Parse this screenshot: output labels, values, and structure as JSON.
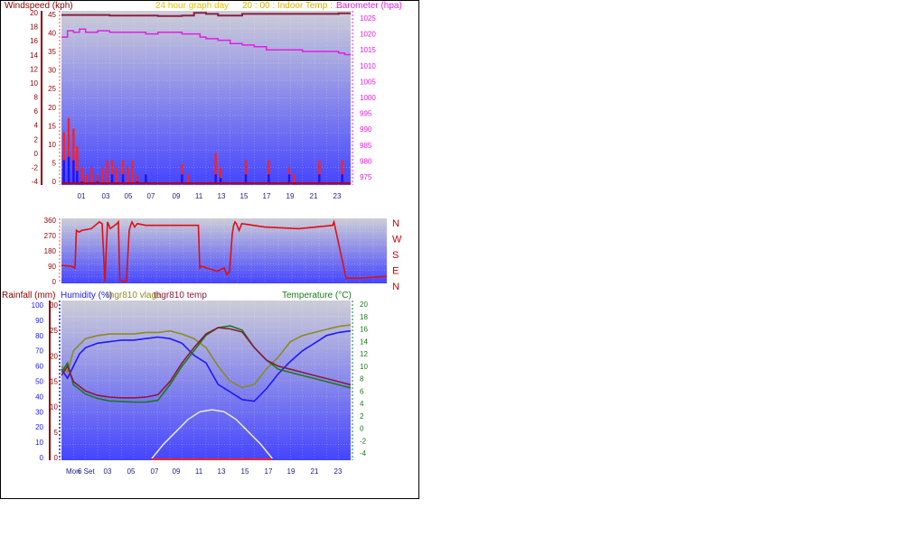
{
  "page": {
    "title": "24 hour graph day",
    "overlay_text": "20 : 00 : Indoor Temp : ..."
  },
  "colors": {
    "wind_axis": "#8b0000",
    "baro": "#e020e0",
    "wind_gust": "#ff2020",
    "wind_avg": "#1515ff",
    "direction": "#e01010",
    "indoor_temp": "#8b2040",
    "rainfall": "#8b0000",
    "humidity": "#1a1aff",
    "vlaga": "#8b8b20",
    "thgr_temp": "#8b1a3a",
    "temperature": "#1a7a1a",
    "solar": "#e8e8e8",
    "bg_top": "#c8c8d4",
    "bg_bottom": "#4a4aff",
    "day_label": "#1a1a8b"
  },
  "chart_data": [
    {
      "type": "line",
      "title": "24 hour graph day",
      "left_axis_label": "Windspeed (kph)",
      "right_axis_label": "Barometer (hpa)",
      "hour_labels": [
        "01",
        "03",
        "05",
        "07",
        "09",
        "11",
        "13",
        "15",
        "17",
        "19",
        "21",
        "23"
      ],
      "wind_ticks_outer": [
        20,
        18,
        16,
        14,
        12,
        10,
        8,
        6,
        4,
        2,
        0,
        -2,
        -4
      ],
      "wind_ticks_inner": [
        45,
        40,
        35,
        30,
        25,
        20,
        15,
        10,
        5,
        0
      ],
      "baro_ticks": [
        1025,
        1020,
        1015,
        1010,
        1005,
        1000,
        995,
        990,
        985,
        980,
        975
      ],
      "ylim_baro": [
        975,
        1028
      ],
      "series": [
        {
          "name": "Barometer (hpa)",
          "x": [
            0,
            0.5,
            1,
            1.5,
            2,
            3,
            4,
            5,
            6,
            7,
            8,
            9,
            10,
            11,
            11.5,
            12,
            13,
            14,
            15,
            16,
            17,
            18,
            19,
            20,
            21,
            22,
            23,
            23.5,
            24
          ],
          "values": [
            1019,
            1021,
            1020.5,
            1021.5,
            1020.5,
            1021,
            1020.5,
            1020.5,
            1020.5,
            1020,
            1020.5,
            1020.5,
            1020,
            1020,
            1019,
            1018.5,
            1018,
            1017,
            1016.5,
            1016,
            1015,
            1015,
            1015,
            1014.5,
            1014.5,
            1014.5,
            1014,
            1013.5,
            1013.5
          ]
        },
        {
          "name": "Indoor Temp",
          "x": [
            0,
            1,
            2,
            3,
            4,
            5,
            6,
            7,
            8,
            9,
            10,
            11,
            12,
            13,
            14,
            15,
            16,
            17,
            18,
            19,
            20,
            21,
            22,
            23,
            24
          ],
          "values": [
            20,
            20,
            20,
            20,
            19.9,
            19.9,
            19.9,
            19.9,
            19.8,
            19.8,
            19.9,
            20.4,
            20.2,
            19.9,
            19.9,
            20.2,
            20.2,
            20.2,
            20.2,
            20.2,
            20.2,
            20.2,
            20.2,
            20.3,
            20.3
          ]
        },
        {
          "name": "Wind gust",
          "x": [
            0.2,
            0.6,
            1.0,
            1.3,
            1.7,
            2.1,
            2.5,
            3.0,
            3.4,
            3.8,
            4.2,
            4.6,
            5.1,
            5.5,
            5.9,
            6.3,
            7.0,
            10.0,
            10.5,
            12.8,
            13.2,
            15.3,
            17.2,
            18.9,
            19.3,
            21.4,
            23.3
          ],
          "values": [
            3,
            5,
            3.5,
            1,
            -2,
            -3,
            -2,
            -3,
            -2,
            -1,
            -1,
            -2,
            -1,
            -2,
            -1,
            -3,
            -3,
            -1.5,
            -3,
            0,
            -2,
            -1,
            -1,
            -2,
            -3,
            -1,
            -1
          ]
        },
        {
          "name": "Wind average",
          "x": [
            0.2,
            0.6,
            1.0,
            1.3,
            1.7,
            3.0,
            4.2,
            5.1,
            6.3,
            7.0,
            10.0,
            12.8,
            13.2,
            15.3,
            17.2,
            18.9,
            21.4,
            23.3
          ],
          "values": [
            -1,
            -0.5,
            -1,
            -2.5,
            -4,
            -4,
            -3,
            -3,
            -4,
            -3,
            -3,
            -3,
            -3.5,
            -3,
            -3,
            -3,
            -3,
            -3
          ]
        }
      ]
    },
    {
      "type": "line",
      "left_ticks": [
        360,
        270,
        180,
        90,
        0
      ],
      "direction_labels": [
        "N",
        "W",
        "S",
        "E",
        "N"
      ],
      "series": [
        {
          "name": "Wind direction",
          "x": [
            0,
            0.7,
            1.0,
            1.1,
            1.3,
            1.5,
            2.2,
            2.8,
            3.0,
            3.2,
            3.4,
            3.6,
            4.1,
            4.2,
            4.3,
            4.6,
            4.8,
            5.0,
            5.1,
            5.2,
            5.4,
            5.6,
            6.2,
            9.0,
            10.1,
            10.2,
            10.3,
            11.5,
            12.0,
            12.2,
            12.4,
            12.6,
            12.7,
            12.8,
            12.9,
            13.1,
            13.3,
            15.0,
            17.5,
            20.0,
            20.1,
            21.0,
            22.0,
            24.0
          ],
          "values": [
            95,
            90,
            80,
            300,
            290,
            300,
            310,
            350,
            340,
            0,
            350,
            310,
            340,
            350,
            10,
            0,
            5,
            300,
            330,
            350,
            320,
            340,
            330,
            330,
            330,
            80,
            90,
            60,
            80,
            40,
            60,
            280,
            330,
            350,
            340,
            300,
            340,
            320,
            310,
            330,
            350,
            20,
            20,
            30
          ]
        }
      ]
    },
    {
      "type": "line",
      "labels": [
        "Rainfall (mm)",
        "Humidity (%)",
        "thgr810 vlaga",
        "thgr810 temp",
        "Temperature (°C)"
      ],
      "rain_ticks": [
        100,
        90,
        80,
        70,
        60,
        50,
        40,
        30,
        20,
        10,
        0
      ],
      "humid_ticks": [
        30,
        25,
        20,
        15,
        10,
        5,
        0
      ],
      "temp_ticks": [
        20,
        18,
        16,
        14,
        12,
        10,
        8,
        6,
        4,
        2,
        0,
        -2,
        -4
      ],
      "day_labels": [
        "Mon",
        "6 Set",
        "03",
        "05",
        "07",
        "09",
        "11",
        "13",
        "15",
        "17",
        "19",
        "21",
        "23"
      ],
      "ylim_temp": [
        -5,
        20
      ],
      "series": [
        {
          "name": "Humidity (%)",
          "x": [
            0,
            0.5,
            1,
            1.5,
            2,
            3,
            4,
            5,
            6,
            7,
            8,
            9,
            10,
            11,
            12,
            13,
            14,
            15,
            16,
            17,
            18,
            19,
            20,
            21,
            22,
            23,
            24
          ],
          "values": [
            58,
            52,
            60,
            68,
            72,
            75,
            76,
            77,
            77,
            78,
            79,
            78,
            75,
            67,
            62,
            48,
            43,
            38,
            37,
            45,
            55,
            63,
            70,
            75,
            80,
            82,
            83
          ]
        },
        {
          "name": "thgr810 vlaga",
          "x": [
            0,
            0.5,
            1,
            2,
            3,
            4,
            5,
            6,
            7,
            8,
            9,
            10,
            11,
            12,
            13,
            14,
            15,
            16,
            17,
            18,
            19,
            20,
            21,
            22,
            23,
            24
          ],
          "values": [
            60,
            56,
            70,
            78,
            80,
            81,
            81,
            81,
            82,
            82,
            83,
            81,
            78,
            72,
            60,
            50,
            46,
            48,
            58,
            66,
            76,
            80,
            82,
            84,
            86,
            87
          ]
        },
        {
          "name": "Temperature (°C)",
          "x": [
            0,
            0.5,
            1,
            2,
            3,
            4,
            5,
            6,
            7,
            8,
            9,
            10,
            11,
            12,
            13,
            14,
            15,
            16,
            17,
            18,
            19,
            20,
            21,
            22,
            23,
            24
          ],
          "values": [
            9,
            10.5,
            7,
            5.5,
            4.8,
            4.4,
            4.3,
            4.2,
            4.2,
            4.5,
            7,
            10,
            12.5,
            15,
            16.2,
            16.5,
            15.8,
            13,
            11,
            9.5,
            9,
            8.5,
            8,
            7.5,
            7,
            6.5
          ]
        },
        {
          "name": "thgr810 temp",
          "x": [
            0,
            0.5,
            1,
            2,
            3,
            4,
            5,
            6,
            7,
            8,
            9,
            10,
            11,
            12,
            13,
            14,
            15,
            16,
            17,
            18,
            19,
            20,
            21,
            22,
            23,
            24
          ],
          "values": [
            8.5,
            10,
            7.5,
            6,
            5.3,
            5,
            4.9,
            4.9,
            5,
            5.4,
            7.5,
            10.5,
            13,
            15.2,
            16.2,
            16,
            15.5,
            13,
            11,
            10,
            9.5,
            9,
            8.5,
            8,
            7.5,
            7
          ]
        },
        {
          "name": "Solar",
          "x": [
            7.5,
            8.5,
            9.5,
            10.5,
            11.5,
            12.5,
            13.5,
            14.5,
            15.5,
            16.5,
            17.5
          ],
          "values": [
            0,
            3,
            5.5,
            8,
            9.6,
            10,
            9.6,
            8,
            5.5,
            3,
            0
          ]
        }
      ]
    }
  ]
}
